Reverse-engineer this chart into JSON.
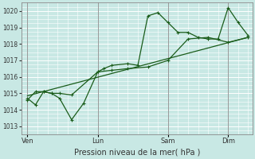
{
  "title": "Pression niveau de la mer( hPa )",
  "bg_color": "#c8e8e4",
  "grid_major_color": "#aad4d0",
  "grid_minor_color": "#b8dedd",
  "line_color": "#1a5c1a",
  "ylim": [
    1012.5,
    1020.5
  ],
  "yticks": [
    1013,
    1014,
    1015,
    1016,
    1017,
    1018,
    1019,
    1020
  ],
  "x_tick_labels": [
    "Ven",
    "Lun",
    "Sam",
    "Dim"
  ],
  "x_tick_positions": [
    0.0,
    3.5,
    7.0,
    10.0
  ],
  "xlim": [
    -0.3,
    11.2
  ],
  "series1_x": [
    0,
    0.4,
    0.8,
    1.2,
    1.6,
    2.2,
    2.8,
    3.5,
    3.8,
    4.2,
    5.0,
    5.5,
    6.0,
    6.5,
    7.0,
    7.5,
    8.0,
    8.5,
    9.0,
    9.5,
    10.0,
    10.5,
    11.0
  ],
  "series1_y": [
    1014.7,
    1014.3,
    1015.1,
    1015.0,
    1014.7,
    1013.4,
    1014.4,
    1016.3,
    1016.5,
    1016.7,
    1016.8,
    1016.7,
    1019.7,
    1019.9,
    1019.3,
    1018.7,
    1018.7,
    1018.4,
    1018.3,
    1018.3,
    1020.2,
    1019.3,
    1018.5
  ],
  "series2_x": [
    0,
    0.4,
    0.8,
    1.2,
    1.6,
    2.2,
    3.5,
    4.2,
    5.0,
    6.0,
    7.0,
    8.0,
    9.0,
    10.0,
    11.0
  ],
  "series2_y": [
    1014.6,
    1015.1,
    1015.1,
    1015.0,
    1015.0,
    1014.9,
    1016.3,
    1016.4,
    1016.5,
    1016.6,
    1017.0,
    1018.3,
    1018.4,
    1018.1,
    1018.4
  ],
  "trend_x": [
    0,
    11.0
  ],
  "trend_y": [
    1014.85,
    1018.4
  ],
  "vline_positions": [
    0.0,
    3.5,
    7.0,
    10.0
  ],
  "spine_color": "#888888"
}
